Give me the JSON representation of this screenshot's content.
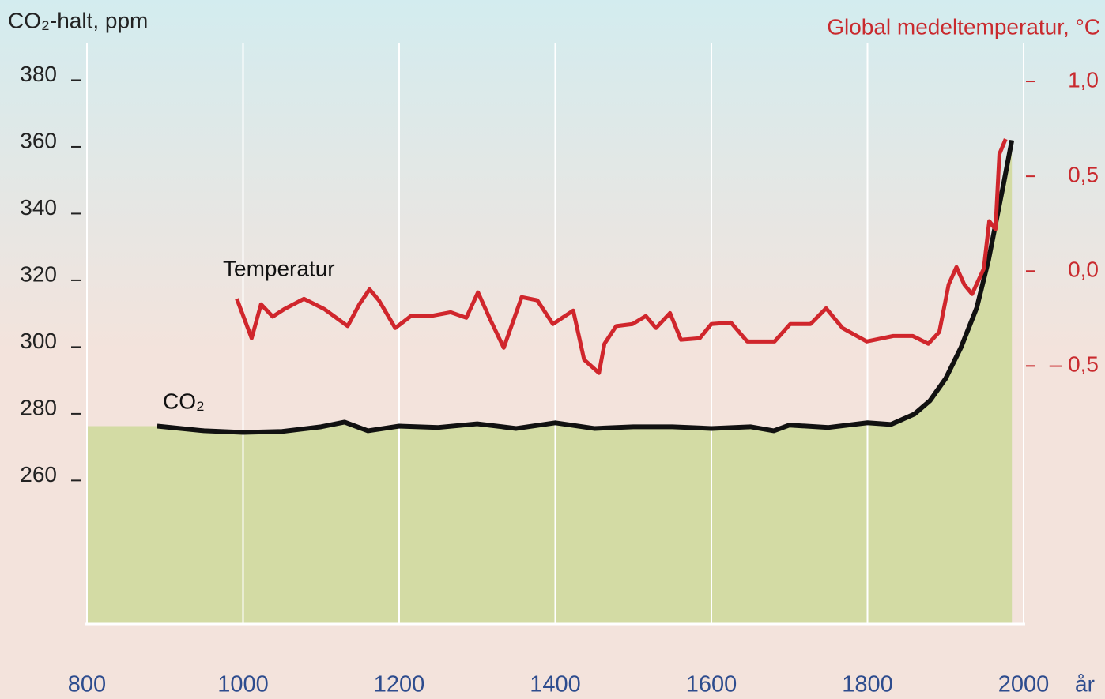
{
  "chart_data": {
    "type": "line",
    "y_label": "CO₂-halt, ppm",
    "y2_label": "Global medeltemperatur, °C",
    "x_label": "år",
    "xlim": [
      800,
      2000
    ],
    "xticks": [
      800,
      1000,
      1200,
      1400,
      1600,
      1800,
      2000
    ],
    "ylim": [
      217,
      391
    ],
    "yticks": [
      260,
      280,
      300,
      320,
      340,
      360,
      380
    ],
    "y2lim": [
      -1.86,
      1.2
    ],
    "y2ticks": [
      {
        "value": -0.5,
        "label": "– 0,5"
      },
      {
        "value": 0,
        "label": "0,0"
      },
      {
        "value": 0.5,
        "label": "0,5"
      },
      {
        "value": 1,
        "label": "1,0"
      }
    ],
    "grid": true,
    "series": [
      {
        "name": "CO₂",
        "color": "#111111",
        "fill": "#d3dba4",
        "x": [
          890,
          950,
          1000,
          1050,
          1100,
          1130,
          1160,
          1200,
          1250,
          1300,
          1350,
          1400,
          1450,
          1500,
          1550,
          1600,
          1650,
          1680,
          1700,
          1750,
          1800,
          1830,
          1860,
          1880,
          1900,
          1920,
          1940,
          1955,
          1965,
          1975,
          1985
        ],
        "values": [
          276.3,
          274.9,
          274.4,
          274.7,
          276.1,
          277.5,
          274.9,
          276.3,
          275.9,
          277.0,
          275.6,
          277.3,
          275.6,
          276.1,
          276.1,
          275.6,
          276.1,
          274.9,
          276.6,
          275.9,
          277.3,
          276.8,
          279.9,
          283.9,
          290.5,
          300,
          311.8,
          326,
          337.9,
          349.7,
          362
        ]
      },
      {
        "name": "Temperatur",
        "color": "#d0262c",
        "axis": "y2",
        "x": [
          992,
          1011,
          1023,
          1038,
          1053,
          1078,
          1104,
          1134,
          1149,
          1162,
          1174,
          1195,
          1215,
          1240,
          1266,
          1286,
          1301,
          1317,
          1334,
          1357,
          1377,
          1397,
          1423,
          1437,
          1456,
          1463,
          1478,
          1499,
          1516,
          1529,
          1547,
          1561,
          1585,
          1600,
          1625,
          1646,
          1681,
          1701,
          1727,
          1747,
          1768,
          1799,
          1833,
          1858,
          1878,
          1892,
          1904,
          1914,
          1924,
          1934,
          1949,
          1956,
          1964,
          1969,
          1977
        ],
        "values": [
          -0.146,
          -0.354,
          -0.175,
          -0.24,
          -0.2,
          -0.146,
          -0.2,
          -0.29,
          -0.175,
          -0.096,
          -0.154,
          -0.3,
          -0.237,
          -0.237,
          -0.217,
          -0.246,
          -0.112,
          -0.258,
          -0.404,
          -0.137,
          -0.154,
          -0.279,
          -0.208,
          -0.467,
          -0.537,
          -0.383,
          -0.29,
          -0.279,
          -0.237,
          -0.3,
          -0.221,
          -0.362,
          -0.354,
          -0.279,
          -0.271,
          -0.371,
          -0.371,
          -0.279,
          -0.279,
          -0.196,
          -0.3,
          -0.371,
          -0.342,
          -0.342,
          -0.383,
          -0.321,
          -0.071,
          0.021,
          -0.071,
          -0.121,
          0.013,
          0.263,
          0.221,
          0.617,
          0.696
        ]
      }
    ]
  }
}
